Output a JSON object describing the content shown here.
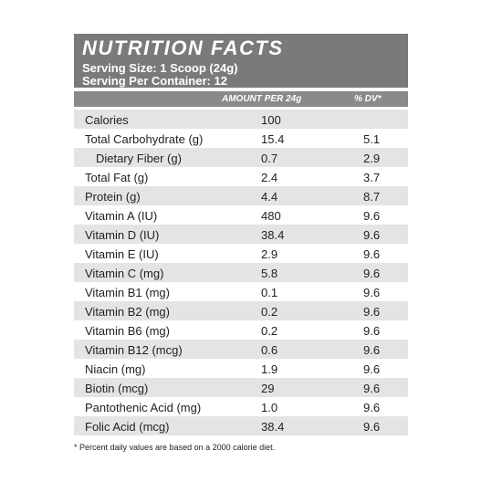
{
  "header": {
    "title": "NUTRITION FACTS",
    "serving_size": "Serving Size: 1 Scoop (24g)",
    "servings": "Serving Per Container: 12"
  },
  "table": {
    "columns": [
      "AMOUNT PER 24g",
      "% DV*"
    ],
    "rows": [
      {
        "label": "Calories",
        "amount": "100"
      },
      {
        "label": "Total Carbohydrate (g)",
        "amount": "15.4",
        "dv": "5.1"
      },
      {
        "label": "Dietary Fiber (g)",
        "amount": "0.7",
        "dv": "2.9"
      },
      {
        "label": "Total Fat (g)",
        "amount": "2.4",
        "dv": "3.7"
      },
      {
        "label": "Protein (g)",
        "amount": "4.4",
        "dv": "8.7"
      },
      {
        "label": "Vitamin A (IU)",
        "amount": "480",
        "dv": "9.6"
      },
      {
        "label": "Vitamin D (IU)",
        "amount": "38.4",
        "dv": "9.6"
      },
      {
        "label": "Vitamin E (IU)",
        "amount": "2.9",
        "dv": "9.6"
      },
      {
        "label": "Vitamin C (mg)",
        "amount": "5.8",
        "dv": "9.6"
      },
      {
        "label": "Vitamin B1 (mg)",
        "amount": "0.1",
        "dv": "9.6"
      },
      {
        "label": "Vitamin B2 (mg)",
        "amount": "0.2",
        "dv": "9.6"
      },
      {
        "label": "Vitamin B6 (mg)",
        "amount": "0.2",
        "dv": "9.6"
      },
      {
        "label": "Vitamin B12 (mcg)",
        "amount": "0.6",
        "dv": "9.6"
      },
      {
        "label": "Niacin (mg)",
        "amount": "1.9",
        "dv": "9.6"
      },
      {
        "label": "Biotin (mcg)",
        "amount": "29",
        "dv": "9.6"
      },
      {
        "label": "Pantothenic Acid (mg)",
        "amount": "1.0",
        "dv": "9.6"
      },
      {
        "label": "Folic Acid (mcg)",
        "amount": "38.4",
        "dv": "9.6"
      }
    ]
  },
  "footnote": "* Percent daily values are based on a 2000 calorie diet."
}
